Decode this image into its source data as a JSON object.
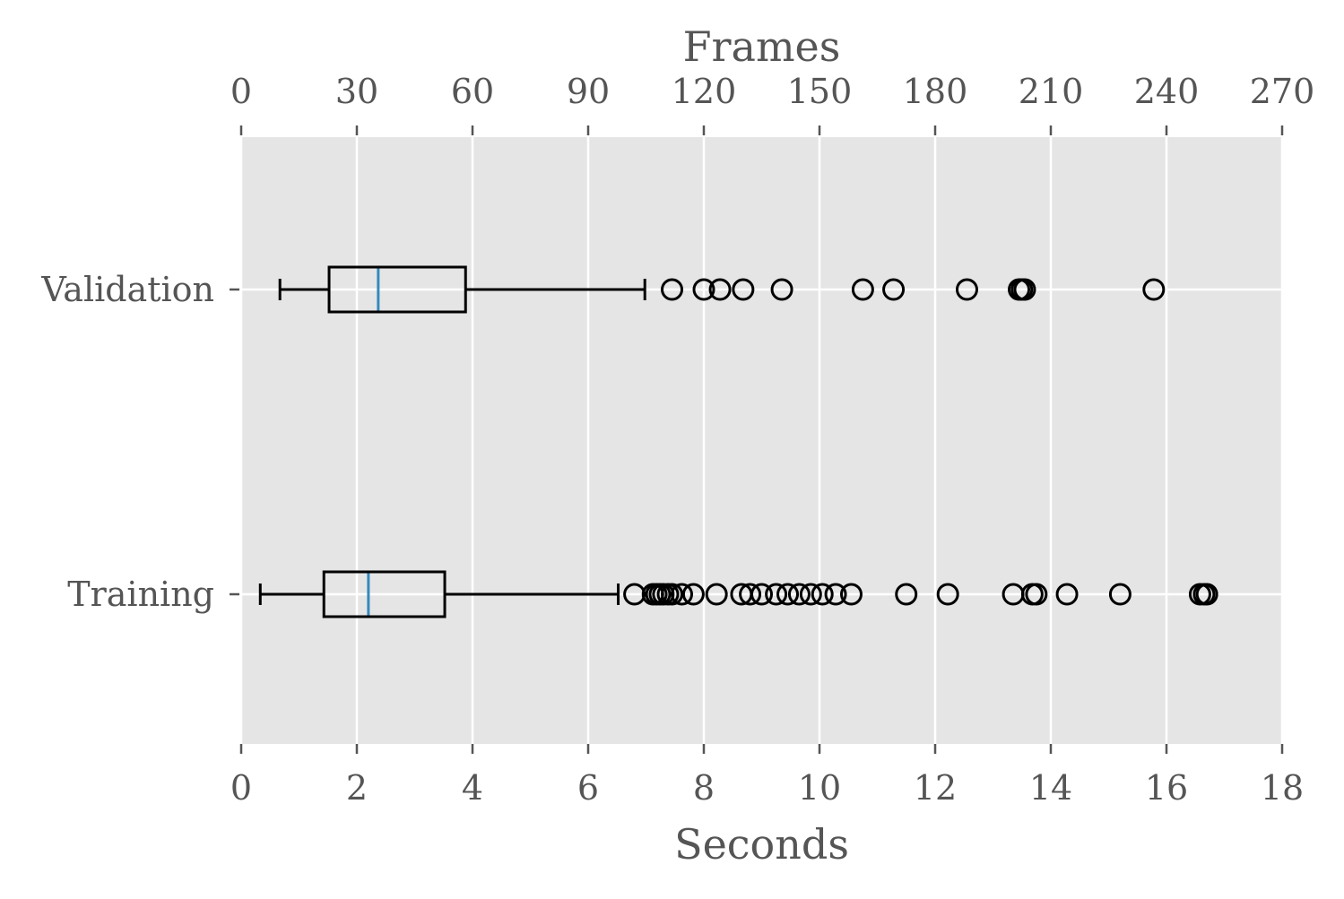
{
  "colors": {
    "plot_background": "#e5e5e5",
    "grid": "#ffffff",
    "box": "#000000",
    "median": "#348abd",
    "text": "#555555",
    "tick": "#555555"
  },
  "chart_data": {
    "type": "boxplot",
    "orientation": "horizontal",
    "grid": true,
    "xlabel": "Seconds",
    "xlabel_top": "Frames",
    "xlim": [
      0,
      18
    ],
    "xticks": [
      "0",
      "2",
      "4",
      "6",
      "8",
      "10",
      "12",
      "14",
      "16",
      "18"
    ],
    "xticks_top": [
      "0",
      "30",
      "60",
      "90",
      "120",
      "150",
      "180",
      "210",
      "240",
      "270"
    ],
    "xlim_top": [
      0,
      270
    ],
    "categories": [
      "Validation",
      "Training"
    ],
    "series": [
      {
        "category": "Validation",
        "whisker_low": 0.67,
        "q1": 1.52,
        "median": 2.37,
        "q3": 3.88,
        "whisker_high": 6.98,
        "outliers": [
          7.45,
          8.0,
          8.28,
          8.68,
          9.35,
          10.75,
          11.28,
          12.55,
          13.45,
          13.5,
          13.55,
          15.78
        ]
      },
      {
        "category": "Training",
        "whisker_low": 0.33,
        "q1": 1.43,
        "median": 2.2,
        "q3": 3.52,
        "whisker_high": 6.52,
        "outliers": [
          6.8,
          7.12,
          7.18,
          7.24,
          7.3,
          7.38,
          7.45,
          7.62,
          7.82,
          8.22,
          8.65,
          8.8,
          9.0,
          9.25,
          9.45,
          9.65,
          9.85,
          10.05,
          10.28,
          10.55,
          11.5,
          12.22,
          13.35,
          13.68,
          13.75,
          14.28,
          15.2,
          16.58,
          16.65,
          16.7
        ]
      }
    ]
  }
}
